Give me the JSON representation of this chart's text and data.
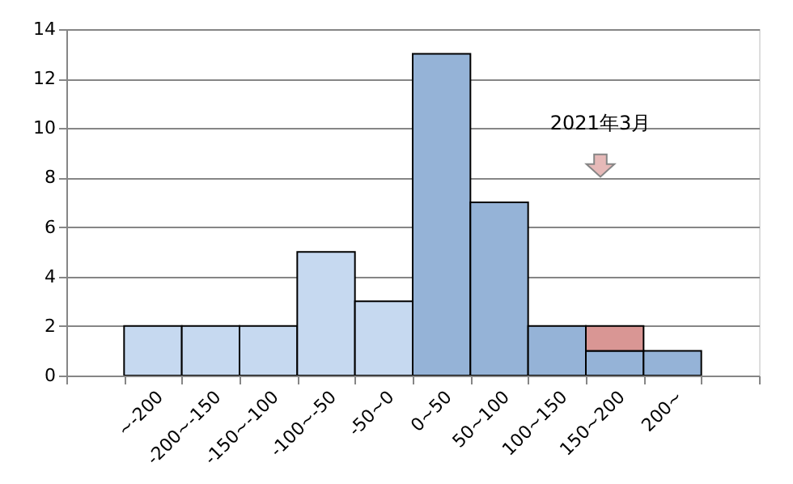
{
  "chart_data": {
    "type": "bar",
    "stacked": true,
    "categories": [
      null,
      "~-200",
      "-200~-150",
      "-150~-100",
      "-100~-50",
      "-50~0",
      "0~50",
      "50~100",
      "100~150",
      "150~200",
      "200~",
      null
    ],
    "series": [
      {
        "colors": [
          null,
          "#c6d9f0",
          "#c6d9f0",
          "#c6d9f0",
          "#c6d9f0",
          "#c6d9f0",
          "#95b3d7",
          "#95b3d7",
          "#95b3d7",
          "#95b3d7",
          "#95b3d7",
          null
        ],
        "values": [
          null,
          2,
          2,
          2,
          5,
          3,
          13,
          7,
          2,
          1,
          1,
          null
        ]
      },
      {
        "color": "#d99694",
        "values": [
          null,
          null,
          null,
          null,
          null,
          null,
          null,
          null,
          null,
          1,
          null,
          null
        ]
      }
    ],
    "ylim": [
      0,
      14
    ],
    "yticks": [
      0,
      2,
      4,
      6,
      8,
      10,
      12,
      14
    ],
    "grid": "y",
    "annotations": [
      "2021年3月"
    ]
  }
}
